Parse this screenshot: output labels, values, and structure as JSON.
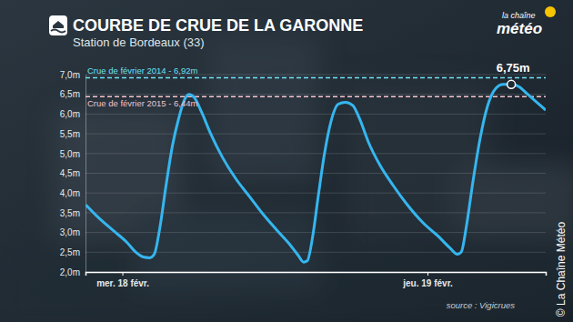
{
  "chart_data": {
    "type": "line",
    "title": "COURBE DE CRUE DE LA GARONNE",
    "subtitle": "Station de Bordeaux (33)",
    "logo": {
      "top": "la chaîne",
      "bottom": "météo"
    },
    "source": "source : Vigicrues",
    "credit": "© La Chaîne Météo",
    "color": "#35b6ef",
    "x": [
      -2.87,
      -1.79,
      -0.72,
      0.36,
      1.07,
      1.65,
      2.15,
      2.51,
      2.94,
      3.44,
      3.94,
      4.44,
      4.87,
      5.23,
      5.66,
      6.23,
      6.95,
      7.88,
      8.95,
      10.03,
      11.1,
      12.18,
      13.11,
      13.83,
      14.26,
      14.54,
      14.97,
      15.4,
      15.9,
      16.4,
      16.98,
      17.55,
      18.12,
      18.7,
      19.34,
      20.27,
      21.28,
      22.42,
      23.64,
      24.86,
      25.79,
      26.36,
      26.65,
      27.08,
      27.58,
      28.15,
      28.72,
      29.37,
      29.94,
      30.59,
      31.16,
      31.88,
      32.59,
      33.3
    ],
    "values": [
      3.7,
      3.35,
      3.05,
      2.75,
      2.5,
      2.38,
      2.36,
      2.45,
      3.1,
      4.2,
      5.2,
      5.9,
      6.35,
      6.5,
      6.42,
      6.05,
      5.5,
      4.9,
      4.35,
      3.9,
      3.45,
      3.05,
      2.72,
      2.42,
      2.25,
      2.28,
      2.9,
      3.9,
      5.0,
      5.8,
      6.25,
      6.3,
      6.22,
      5.85,
      5.3,
      4.7,
      4.2,
      3.7,
      3.25,
      2.9,
      2.6,
      2.45,
      2.5,
      3.2,
      4.3,
      5.4,
      6.2,
      6.65,
      6.75,
      6.75,
      6.7,
      6.5,
      6.3,
      6.1
    ],
    "xlim": [
      -2.9,
      33.3
    ],
    "xticks": [
      {
        "value": 0,
        "label": "mer. 18 févr."
      },
      {
        "value": 24,
        "label": "jeu. 19 févr."
      }
    ],
    "ylim": [
      2,
      7
    ],
    "yticks": [
      {
        "value": 2,
        "label": "2,0m"
      },
      {
        "value": 2.5,
        "label": "2,5m"
      },
      {
        "value": 3,
        "label": "3,0m"
      },
      {
        "value": 3.5,
        "label": "3,5m"
      },
      {
        "value": 4,
        "label": "4,0m"
      },
      {
        "value": 4.5,
        "label": "4,5m"
      },
      {
        "value": 5,
        "label": "5,0m"
      },
      {
        "value": 5.5,
        "label": "5,5m"
      },
      {
        "value": 6,
        "label": "6,0m"
      },
      {
        "value": 6.5,
        "label": "6,5m"
      },
      {
        "value": 7,
        "label": "7,0m"
      }
    ],
    "grid": true,
    "reference_lines": [
      {
        "value": 6.92,
        "label": "Crue de février 2014 - 6,92m",
        "color": "#6fe2f6"
      },
      {
        "value": 6.44,
        "label": "Crue de février 2015 - 6,44m",
        "color": "#f3c3cd"
      }
    ],
    "annotations": [
      {
        "x": 30.59,
        "y": 6.75,
        "text": "6,75m"
      }
    ]
  }
}
